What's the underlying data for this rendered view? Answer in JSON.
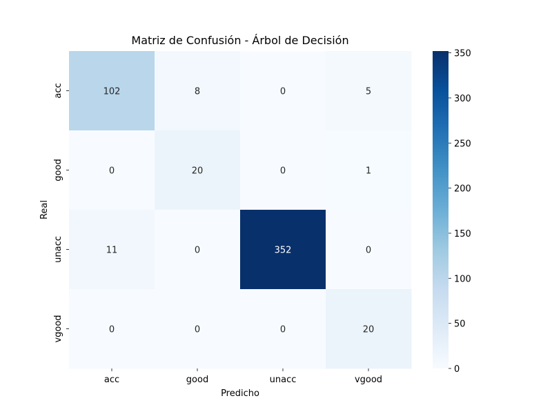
{
  "chart_data": {
    "type": "heatmap",
    "title": "Matriz de Confusión - Árbol de Decisión",
    "xlabel": "Predicho",
    "ylabel": "Real",
    "x_categories": [
      "acc",
      "good",
      "unacc",
      "vgood"
    ],
    "y_categories": [
      "acc",
      "good",
      "unacc",
      "vgood"
    ],
    "values": [
      [
        102,
        8,
        0,
        5
      ],
      [
        0,
        20,
        0,
        1
      ],
      [
        11,
        0,
        352,
        0
      ],
      [
        0,
        0,
        0,
        20
      ]
    ],
    "colormap": "Blues",
    "color_range": [
      0,
      352
    ],
    "colorbar_ticks": [
      0,
      50,
      100,
      150,
      200,
      250,
      300,
      350
    ],
    "grid": false
  }
}
